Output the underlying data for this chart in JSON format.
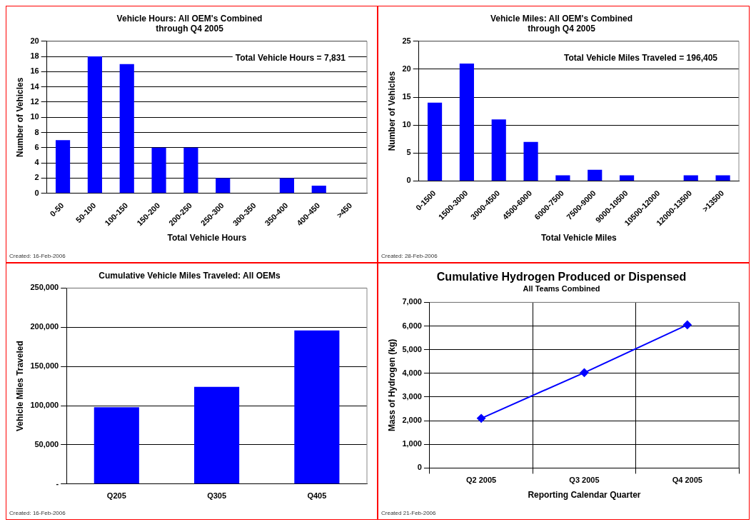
{
  "chart_data": [
    {
      "type": "bar",
      "title": "Vehicle Hours: All OEM's Combined\nthrough Q4 2005",
      "xlabel": "Total Vehicle Hours",
      "ylabel": "Number of Vehicles",
      "categories": [
        "0-50",
        "50-100",
        "100-150",
        "150-200",
        "200-250",
        "250-300",
        "300-350",
        "350-400",
        "400-450",
        ">450"
      ],
      "values": [
        7,
        18,
        17,
        6,
        6,
        2,
        0,
        2,
        1,
        0
      ],
      "color": "#0000ff",
      "ylim": [
        0,
        20
      ],
      "yticks": [
        0,
        2,
        4,
        6,
        8,
        10,
        12,
        14,
        16,
        18,
        20
      ],
      "grid": "y",
      "annotations": [
        "Total Vehicle Hours = 7,831",
        "Created: 16-Feb-2006"
      ]
    },
    {
      "type": "bar",
      "title": "Vehicle Miles: All OEM's Combined\nthrough Q4 2005",
      "xlabel": "Total Vehicle Miles",
      "ylabel": "Number of Vehicles",
      "categories": [
        "0-1500",
        "1500-3000",
        "3000-4500",
        "4500-6000",
        "6000-7500",
        "7500-9000",
        "9000-10500",
        "10500-12000",
        "12000-13500",
        ">13500"
      ],
      "values": [
        14,
        21,
        11,
        7,
        1,
        2,
        1,
        0,
        1,
        1
      ],
      "color": "#0000ff",
      "ylim": [
        0,
        25
      ],
      "yticks": [
        0,
        5,
        10,
        15,
        20,
        25
      ],
      "grid": "y",
      "annotations": [
        "Total Vehicle Miles Traveled = 196,405",
        "Created: 28-Feb-2006"
      ]
    },
    {
      "type": "bar",
      "title": "Cumulative Vehicle Miles Traveled: All OEMs",
      "ylabel": "Vehicle Miles Traveled",
      "categories": [
        "Q205",
        "Q305",
        "Q405"
      ],
      "values": [
        98000,
        124000,
        196000
      ],
      "color": "#0000ff",
      "ylim": [
        0,
        250000
      ],
      "yticks": [
        {
          "value": 0,
          "label": "-"
        },
        {
          "value": 50000,
          "label": "50,000"
        },
        {
          "value": 100000,
          "label": "100,000"
        },
        {
          "value": 150000,
          "label": "150,000"
        },
        {
          "value": 200000,
          "label": "200,000"
        },
        {
          "value": 250000,
          "label": "250,000"
        }
      ],
      "grid": "y",
      "annotations": [
        "Created: 16-Feb-2006"
      ]
    },
    {
      "type": "line",
      "title": "Cumulative Hydrogen Produced or Dispensed",
      "subtitle": "All Teams Combined",
      "xlabel": "Reporting Calendar Quarter",
      "ylabel": "Mass of Hydrogen (kg)",
      "categories": [
        "Q2 2005",
        "Q3 2005",
        "Q4 2005"
      ],
      "values": [
        2100,
        4030,
        6050
      ],
      "color": "#0000ff",
      "marker": "diamond",
      "ylim": [
        0,
        7000
      ],
      "yticks": [
        0,
        {
          "value": 1000,
          "label": "1,000"
        },
        {
          "value": 2000,
          "label": "2,000"
        },
        {
          "value": 3000,
          "label": "3,000"
        },
        {
          "value": 4000,
          "label": "4,000"
        },
        {
          "value": 5000,
          "label": "5,000"
        },
        {
          "value": 6000,
          "label": "6,000"
        },
        {
          "value": 7000,
          "label": "7,000"
        }
      ],
      "grid": true,
      "annotations": [
        "Created 21-Feb-2006"
      ]
    }
  ]
}
